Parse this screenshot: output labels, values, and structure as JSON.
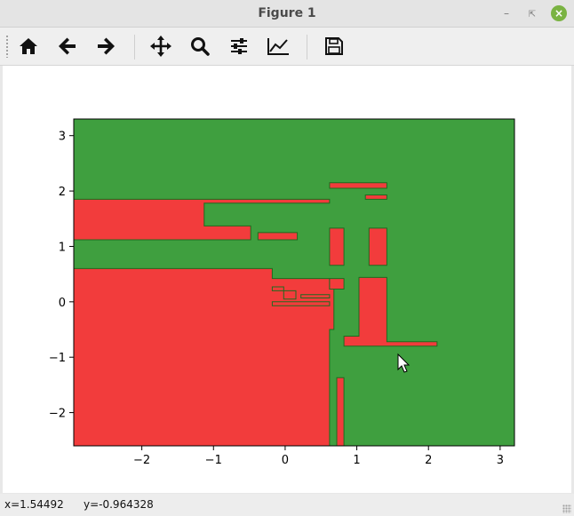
{
  "window": {
    "title": "Figure 1"
  },
  "toolbar": {
    "tools": [
      {
        "name": "home-icon",
        "tooltip": "Home"
      },
      {
        "name": "back-arrow-icon",
        "tooltip": "Back"
      },
      {
        "name": "forward-arrow-icon",
        "tooltip": "Forward"
      },
      {
        "name": "pan-icon",
        "tooltip": "Pan"
      },
      {
        "name": "zoom-icon",
        "tooltip": "Zoom"
      },
      {
        "name": "subplots-icon",
        "tooltip": "Subplots"
      },
      {
        "name": "edit-axis-icon",
        "tooltip": "Customize"
      },
      {
        "name": "save-icon",
        "tooltip": "Save"
      }
    ]
  },
  "status": {
    "x_text": "x=1.54492",
    "y_text": "y=-0.964328"
  },
  "colors": {
    "green": "#3f9f3f",
    "red": "#f23c3c",
    "edge": "#1f6b1f"
  },
  "chart_data": {
    "type": "filled-regions",
    "title": "",
    "xlabel": "",
    "ylabel": "",
    "xlim": [
      -2.95,
      3.2
    ],
    "ylim": [
      -2.6,
      3.3
    ],
    "xticks": [
      -2,
      -1,
      0,
      1,
      2,
      3
    ],
    "yticks": [
      -2,
      -1,
      0,
      1,
      2,
      3
    ],
    "background_class": "green",
    "red_regions": [
      [
        [
          -2.95,
          1.85
        ],
        [
          0.62,
          1.85
        ],
        [
          0.62,
          1.78
        ],
        [
          -1.13,
          1.78
        ],
        [
          -1.13,
          1.37
        ],
        [
          -0.48,
          1.37
        ],
        [
          -0.48,
          1.12
        ],
        [
          -2.95,
          1.12
        ]
      ],
      [
        [
          -2.95,
          0.6
        ],
        [
          -0.18,
          0.6
        ],
        [
          -0.18,
          0.42
        ],
        [
          0.62,
          0.42
        ],
        [
          0.62,
          0.23
        ],
        [
          0.68,
          0.23
        ],
        [
          0.68,
          -0.5
        ],
        [
          0.62,
          -0.5
        ],
        [
          0.62,
          -2.6
        ],
        [
          -2.95,
          -2.6
        ]
      ],
      [
        [
          0.62,
          2.15
        ],
        [
          1.42,
          2.15
        ],
        [
          1.42,
          2.05
        ],
        [
          0.62,
          2.05
        ]
      ],
      [
        [
          1.12,
          1.93
        ],
        [
          1.42,
          1.93
        ],
        [
          1.42,
          1.85
        ],
        [
          1.12,
          1.85
        ]
      ],
      [
        [
          -0.38,
          1.25
        ],
        [
          0.17,
          1.25
        ],
        [
          0.17,
          1.12
        ],
        [
          -0.38,
          1.12
        ]
      ],
      [
        [
          0.62,
          1.33
        ],
        [
          0.82,
          1.33
        ],
        [
          0.82,
          0.66
        ],
        [
          0.62,
          0.66
        ]
      ],
      [
        [
          1.17,
          1.33
        ],
        [
          1.42,
          1.33
        ],
        [
          1.42,
          0.66
        ],
        [
          1.17,
          0.66
        ]
      ],
      [
        [
          0.62,
          0.42
        ],
        [
          0.82,
          0.42
        ],
        [
          0.82,
          0.23
        ],
        [
          0.62,
          0.23
        ]
      ],
      [
        [
          1.03,
          0.44
        ],
        [
          1.42,
          0.44
        ],
        [
          1.42,
          -0.72
        ],
        [
          2.12,
          -0.72
        ],
        [
          2.12,
          -0.8
        ],
        [
          0.82,
          -0.8
        ],
        [
          0.82,
          -0.62
        ],
        [
          1.03,
          -0.62
        ]
      ],
      [
        [
          -0.18,
          0.27
        ],
        [
          -0.02,
          0.27
        ],
        [
          -0.02,
          0.2
        ],
        [
          -0.18,
          0.2
        ]
      ],
      [
        [
          -0.02,
          0.2
        ],
        [
          0.15,
          0.2
        ],
        [
          0.15,
          0.05
        ],
        [
          -0.02,
          0.05
        ]
      ],
      [
        [
          0.22,
          0.13
        ],
        [
          0.62,
          0.13
        ],
        [
          0.62,
          0.07
        ],
        [
          0.22,
          0.07
        ]
      ],
      [
        [
          -0.18,
          0.0
        ],
        [
          0.62,
          0.0
        ],
        [
          0.62,
          -0.07
        ],
        [
          -0.18,
          -0.07
        ]
      ],
      [
        [
          0.72,
          -1.37
        ],
        [
          0.82,
          -1.37
        ],
        [
          0.82,
          -2.6
        ],
        [
          0.72,
          -2.6
        ]
      ]
    ]
  }
}
